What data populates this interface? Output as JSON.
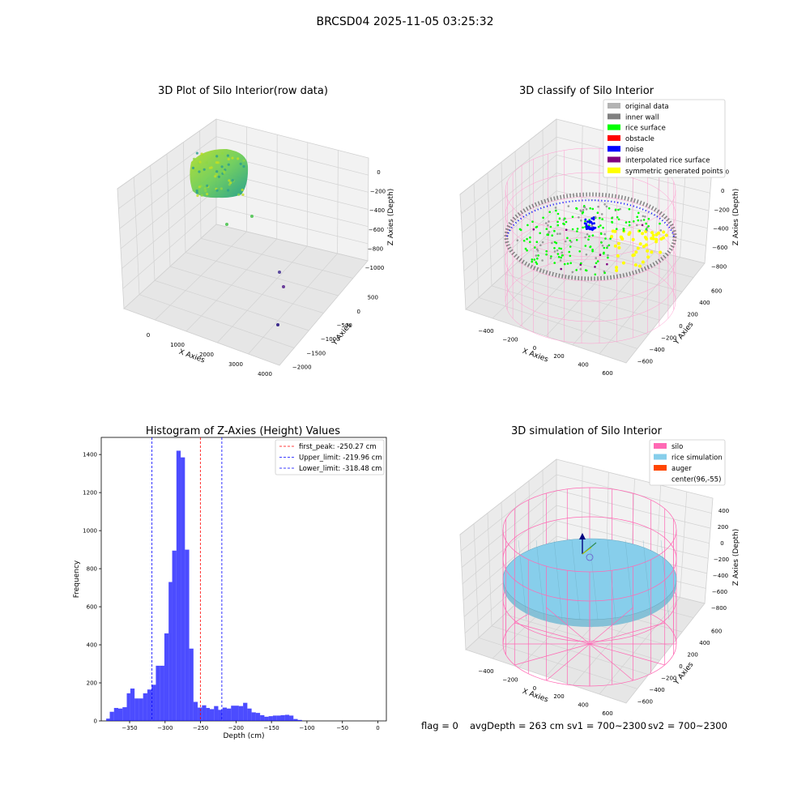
{
  "figure_title": "BRCSD04 2025-11-05 03:25:32",
  "status_line": {
    "flag": "flag = 0",
    "avg_depth": "avgDepth = 263 cm",
    "sv1": "sv1 = 700~2300",
    "sv2": "sv2 = 700~2300"
  },
  "chart_data": [
    {
      "type": "scatter",
      "projection": "3d",
      "title": "3D Plot of Silo Interior(row data)",
      "xlabel": "X Axies",
      "ylabel": "Y Axies",
      "zlabel": "Z Axies (Depth)",
      "x_ticks": [
        "0",
        "1000",
        "2000",
        "3000",
        "4000"
      ],
      "y_ticks": [
        "500",
        "0",
        "−500",
        "−1000",
        "−1500",
        "−2000"
      ],
      "z_ticks": [
        "0",
        "−200",
        "−400",
        "−600",
        "−800",
        "−1000"
      ],
      "point_cloud": {
        "x_range": [
          -100,
          400
        ],
        "y_range": [
          -500,
          500
        ],
        "z_range": [
          -300,
          -150
        ],
        "colormap": "viridis"
      },
      "outliers": [
        {
          "x": 400,
          "y": -100,
          "z": -430
        },
        {
          "x": 800,
          "y": -50,
          "z": -400
        },
        {
          "x": 2500,
          "y": -700,
          "z": -800
        },
        {
          "x": 2700,
          "y": -900,
          "z": -850
        },
        {
          "x": 3200,
          "y": -1500,
          "z": -950
        }
      ],
      "grid": true
    },
    {
      "type": "scatter",
      "projection": "3d",
      "title": "3D classify of Silo Interior",
      "xlabel": "X Axies",
      "ylabel": "Y Axies",
      "zlabel": "Z Axies (Depth)",
      "x_ticks": [
        "−400",
        "−200",
        "0",
        "200",
        "400",
        "600"
      ],
      "y_ticks": [
        "600",
        "400",
        "200",
        "0",
        "−200",
        "−400",
        "−600"
      ],
      "z_ticks": [
        "200",
        "0",
        "−200",
        "−400",
        "−600",
        "−800"
      ],
      "legend": [
        {
          "label": "original data",
          "color": "#b3b3b3"
        },
        {
          "label": "inner wall",
          "color": "#808080"
        },
        {
          "label": "rice surface",
          "color": "#00ff00"
        },
        {
          "label": "obstacle",
          "color": "#ff0000"
        },
        {
          "label": "noise",
          "color": "#0000ff"
        },
        {
          "label": "interpolated rice surface",
          "color": "#800080"
        },
        {
          "label": "symmetric generated points",
          "color": "#ffff00"
        }
      ],
      "legend_position": "upper right",
      "silo_wireframe_color": "#ff69b4",
      "grid": true
    },
    {
      "type": "bar",
      "title": "Histogram of Z-Axies (Height) Values",
      "xlabel": "Depth (cm)",
      "ylabel": "Frequency",
      "xlim": [
        -390,
        12
      ],
      "ylim": [
        0,
        1490
      ],
      "x_ticks": [
        -350,
        -300,
        -250,
        -200,
        -150,
        -100,
        -50,
        0
      ],
      "x_tick_labels": [
        "−350",
        "−300",
        "−250",
        "−200",
        "−150",
        "−100",
        "−50",
        "0"
      ],
      "y_ticks": [
        0,
        200,
        400,
        600,
        800,
        1000,
        1200,
        1400
      ],
      "bar_color": "#0000ff",
      "bins": [
        {
          "x0": -383,
          "x1": -378,
          "v": 12
        },
        {
          "x0": -378,
          "x1": -372,
          "v": 48
        },
        {
          "x0": -372,
          "x1": -366,
          "v": 68
        },
        {
          "x0": -366,
          "x1": -360,
          "v": 65
        },
        {
          "x0": -360,
          "x1": -354,
          "v": 72
        },
        {
          "x0": -354,
          "x1": -349,
          "v": 145
        },
        {
          "x0": -349,
          "x1": -343,
          "v": 170
        },
        {
          "x0": -343,
          "x1": -337,
          "v": 118
        },
        {
          "x0": -337,
          "x1": -331,
          "v": 118
        },
        {
          "x0": -331,
          "x1": -325,
          "v": 145
        },
        {
          "x0": -325,
          "x1": -319,
          "v": 165
        },
        {
          "x0": -319,
          "x1": -313,
          "v": 190
        },
        {
          "x0": -313,
          "x1": -307,
          "v": 290
        },
        {
          "x0": -307,
          "x1": -301,
          "v": 290
        },
        {
          "x0": -301,
          "x1": -295,
          "v": 460
        },
        {
          "x0": -295,
          "x1": -290,
          "v": 730
        },
        {
          "x0": -290,
          "x1": -284,
          "v": 895
        },
        {
          "x0": -284,
          "x1": -278,
          "v": 1420
        },
        {
          "x0": -278,
          "x1": -272,
          "v": 1385
        },
        {
          "x0": -272,
          "x1": -266,
          "v": 900
        },
        {
          "x0": -266,
          "x1": -260,
          "v": 380
        },
        {
          "x0": -260,
          "x1": -254,
          "v": 100
        },
        {
          "x0": -254,
          "x1": -248,
          "v": 70
        },
        {
          "x0": -248,
          "x1": -242,
          "v": 82
        },
        {
          "x0": -242,
          "x1": -237,
          "v": 68
        },
        {
          "x0": -237,
          "x1": -231,
          "v": 62
        },
        {
          "x0": -231,
          "x1": -225,
          "v": 78
        },
        {
          "x0": -225,
          "x1": -219,
          "v": 58
        },
        {
          "x0": -219,
          "x1": -213,
          "v": 70
        },
        {
          "x0": -213,
          "x1": -207,
          "v": 65
        },
        {
          "x0": -207,
          "x1": -201,
          "v": 80
        },
        {
          "x0": -201,
          "x1": -196,
          "v": 80
        },
        {
          "x0": -196,
          "x1": -190,
          "v": 78
        },
        {
          "x0": -190,
          "x1": -184,
          "v": 95
        },
        {
          "x0": -184,
          "x1": -178,
          "v": 65
        },
        {
          "x0": -178,
          "x1": -172,
          "v": 45
        },
        {
          "x0": -172,
          "x1": -166,
          "v": 42
        },
        {
          "x0": -166,
          "x1": -160,
          "v": 30
        },
        {
          "x0": -160,
          "x1": -154,
          "v": 22
        },
        {
          "x0": -154,
          "x1": -148,
          "v": 25
        },
        {
          "x0": -148,
          "x1": -143,
          "v": 28
        },
        {
          "x0": -143,
          "x1": -137,
          "v": 28
        },
        {
          "x0": -137,
          "x1": -131,
          "v": 30
        },
        {
          "x0": -131,
          "x1": -125,
          "v": 32
        },
        {
          "x0": -125,
          "x1": -119,
          "v": 28
        },
        {
          "x0": -119,
          "x1": -113,
          "v": 10
        },
        {
          "x0": -113,
          "x1": -107,
          "v": 5
        }
      ],
      "vlines": [
        {
          "label": "first_peak: -250.27 cm",
          "x": -250.27,
          "color": "#ff0000"
        },
        {
          "label": "Upper_limit: -219.96 cm",
          "x": -219.96,
          "color": "#0000ff"
        },
        {
          "label": "Lower_limit: -318.48 cm",
          "x": -318.48,
          "color": "#0000ff"
        }
      ],
      "legend_position": "upper right",
      "grid": false
    },
    {
      "type": "surface",
      "projection": "3d",
      "title": "3D simulation of Silo Interior",
      "xlabel": "X Axies",
      "ylabel": "Y Axies",
      "zlabel": "Z Axies (Depth)",
      "x_ticks": [
        "−400",
        "−200",
        "0",
        "200",
        "400",
        "600"
      ],
      "y_ticks": [
        "600",
        "400",
        "200",
        "0",
        "−200",
        "−400",
        "−600"
      ],
      "z_ticks": [
        "400",
        "200",
        "0",
        "−200",
        "−400",
        "−600",
        "−800"
      ],
      "legend": [
        {
          "label": "silo",
          "color": "#ff69b4"
        },
        {
          "label": "rice simulation",
          "color": "#87ceeb"
        },
        {
          "label": "auger",
          "color": "#ff4500"
        },
        {
          "label": "center(96,-55)",
          "color": ""
        }
      ],
      "legend_position": "upper right",
      "grid": true
    }
  ]
}
